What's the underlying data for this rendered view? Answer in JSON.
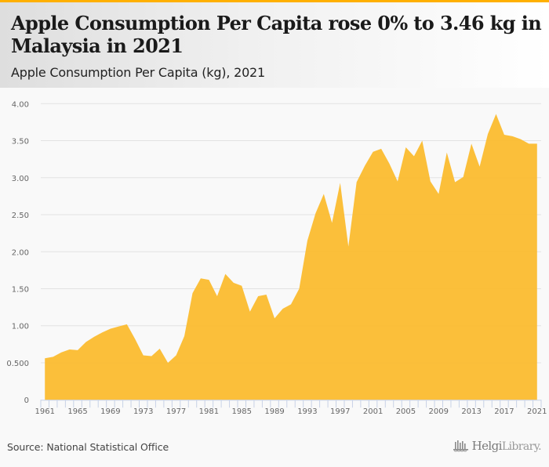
{
  "header": {
    "title": "Apple Consumption Per Capita rose 0% to 3.46 kg in Malaysia in 2021",
    "subtitle": "Apple Consumption Per Capita (kg), 2021",
    "accent_color": "#ffb000"
  },
  "footer": {
    "source": "Source: National Statistical Office",
    "logo_text_bold": "Helgi",
    "logo_text_light": "Library."
  },
  "chart_data": {
    "type": "area",
    "title": "Apple Consumption Per Capita rose 0% to 3.46 kg in Malaysia in 2021",
    "subtitle": "Apple Consumption Per Capita (kg), 2021",
    "xlabel": "",
    "ylabel": "",
    "fill_color": "#fbbc2f",
    "grid": true,
    "legend": "none",
    "ylim": [
      0,
      4.0
    ],
    "y_ticks": [
      0,
      0.5,
      1.0,
      1.5,
      2.0,
      2.5,
      3.0,
      3.5,
      4.0
    ],
    "y_tick_labels": [
      "0",
      "0.500",
      "1.00",
      "1.50",
      "2.00",
      "2.50",
      "3.00",
      "3.50",
      "4.00"
    ],
    "x_tick_labels": [
      "1961",
      "1965",
      "1969",
      "1973",
      "1977",
      "1981",
      "1985",
      "1989",
      "1993",
      "1997",
      "2001",
      "2005",
      "2009",
      "2013",
      "2017",
      "2021"
    ],
    "x": [
      1961,
      1962,
      1963,
      1964,
      1965,
      1966,
      1967,
      1968,
      1969,
      1970,
      1971,
      1972,
      1973,
      1974,
      1975,
      1976,
      1977,
      1978,
      1979,
      1980,
      1981,
      1982,
      1983,
      1984,
      1985,
      1986,
      1987,
      1988,
      1989,
      1990,
      1991,
      1992,
      1993,
      1994,
      1995,
      1996,
      1997,
      1998,
      1999,
      2000,
      2001,
      2002,
      2003,
      2004,
      2005,
      2006,
      2007,
      2008,
      2009,
      2010,
      2011,
      2012,
      2013,
      2014,
      2015,
      2016,
      2017,
      2018,
      2019,
      2020,
      2021
    ],
    "series": [
      {
        "name": "Apple Consumption Per Capita (kg)",
        "values": [
          0.56,
          0.58,
          0.64,
          0.68,
          0.67,
          0.78,
          0.85,
          0.91,
          0.96,
          0.99,
          1.02,
          0.82,
          0.6,
          0.59,
          0.69,
          0.5,
          0.6,
          0.86,
          1.44,
          1.64,
          1.62,
          1.4,
          1.7,
          1.58,
          1.54,
          1.19,
          1.4,
          1.42,
          1.1,
          1.23,
          1.29,
          1.5,
          2.15,
          2.52,
          2.78,
          2.39,
          2.93,
          2.07,
          2.94,
          3.16,
          3.35,
          3.39,
          3.19,
          2.95,
          3.41,
          3.29,
          3.5,
          2.95,
          2.78,
          3.34,
          2.94,
          3.01,
          3.46,
          3.15,
          3.59,
          3.86,
          3.58,
          3.56,
          3.52,
          3.46,
          3.46
        ]
      }
    ]
  }
}
